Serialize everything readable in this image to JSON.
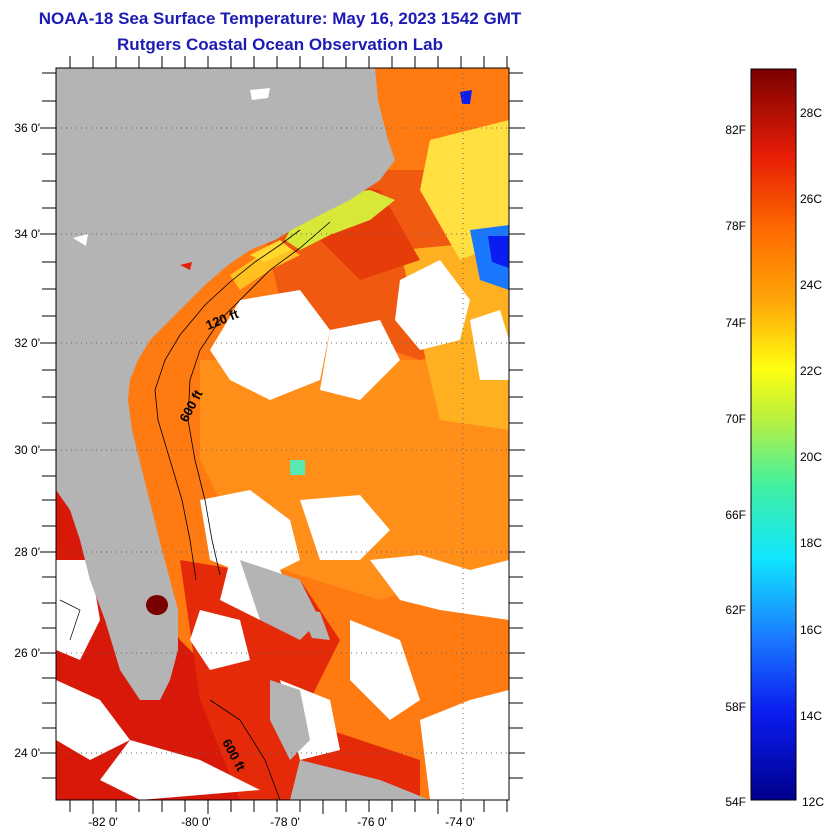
{
  "title": {
    "line1": "NOAA-18 Sea Surface Temperature:  May 16, 2023 1542 GMT",
    "line2": "Rutgers Coastal Ocean Observation Lab"
  },
  "map": {
    "lat_labels": [
      "36 0'",
      "34 0'",
      "32 0'",
      "30 0'",
      "28 0'",
      "26 0'",
      "24 0'"
    ],
    "lon_labels": [
      "-82 0'",
      "-80 0'",
      "-78 0'",
      "-76 0'",
      "-74 0'"
    ],
    "isobath_labels": [
      "120 ft",
      "600 ft",
      "600 ft"
    ]
  },
  "colorbar": {
    "fahrenheit_labels": [
      "82F",
      "78F",
      "74F",
      "70F",
      "66F",
      "62F",
      "58F",
      "54F"
    ],
    "celsius_labels": [
      "28C",
      "26C",
      "24C",
      "22C",
      "20C",
      "18C",
      "16C",
      "14C",
      "12C"
    ]
  },
  "colors": {
    "title": "#1c1cb4",
    "land": "#b4b4b4",
    "cloud": "#ffffff",
    "scale_max": "#7a0000",
    "scale_min": "#00008c"
  }
}
